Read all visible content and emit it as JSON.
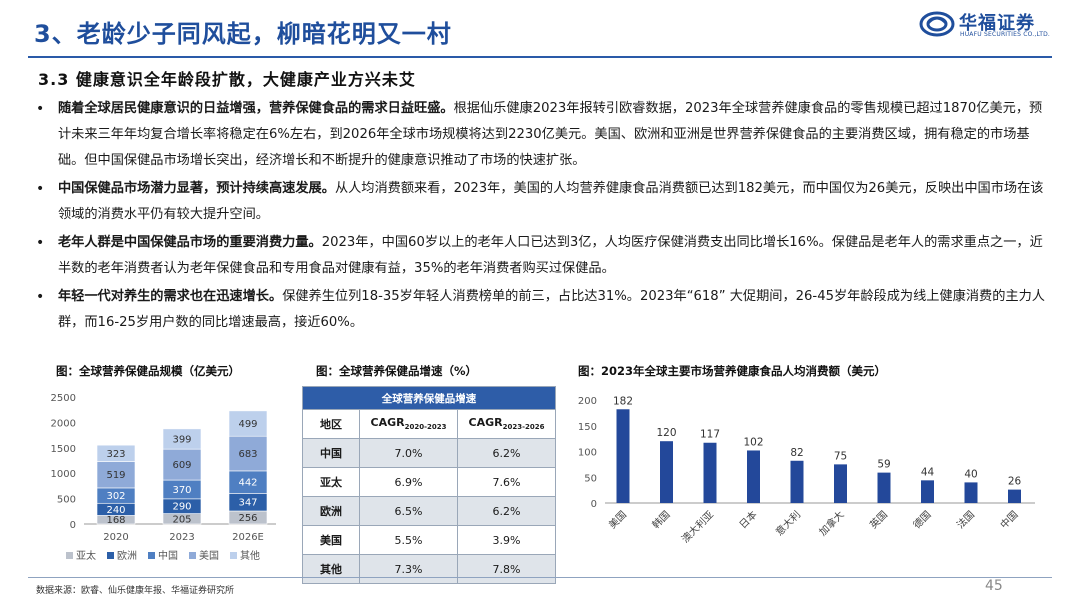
{
  "header": {
    "title": "3、老龄少子同风起，柳暗花明又一村",
    "logo_cn": "华福证券",
    "logo_en": "HUAFU SECURITIES CO.,LTD."
  },
  "section": {
    "subtitle": "3.3 健康意识全年龄段扩散，大健康产业方兴未艾"
  },
  "bullets": [
    {
      "bold": "随着全球居民健康意识的日益增强，营养保健食品的需求日益旺盛。",
      "text": "根据仙乐健康2023年报转引欧睿数据，2023年全球营养健康食品的零售规模已超过1870亿美元，预计未来三年年均复合增长率将稳定在6%左右，到2026年全球市场规模将达到2230亿美元。美国、欧洲和亚洲是世界营养保健食品的主要消费区域，拥有稳定的市场基础。但中国保健品市场增长突出，经济增长和不断提升的健康意识推动了市场的快速扩张。"
    },
    {
      "bold": "中国保健品市场潜力显著，预计持续高速发展。",
      "text": "从人均消费额来看，2023年，美国的人均营养健康食品消费额已达到182美元，而中国仅为26美元，反映出中国市场在该领域的消费水平仍有较大提升空间。"
    },
    {
      "bold": "老年人群是中国保健品市场的重要消费力量。",
      "text": "2023年，中国60岁以上的老年人口已达到3亿，人均医疗保健消费支出同比增长16%。保健品是老年人的需求重点之一，近半数的老年消费者认为老年保健食品和专用食品对健康有益，35%的老年消费者购买过保健品。"
    },
    {
      "bold": "年轻一代对养生的需求也在迅速增长。",
      "text": "保健养生位列18-35岁年轻人消费榜单的前三，占比达31%。2023年“618” 大促期间，26-45岁年龄段成为线上健康消费的主力人群，而16-25岁用户数的同比增速最高，接近60%。"
    }
  ],
  "chart_titles": {
    "left": "图：全球营养保健品规模（亿美元）",
    "middle": "图：全球营养保健品增速（%）",
    "right": "图：2023年全球主要市场营养健康食品人均消费额（美元）"
  },
  "chart_data": [
    {
      "type": "bar",
      "stacked": true,
      "categories": [
        "2020",
        "2023",
        "2026E"
      ],
      "series": [
        {
          "name": "亚太",
          "color": "#bcc2cc",
          "values": [
            168,
            205,
            256
          ]
        },
        {
          "name": "欧洲",
          "color": "#2c5fa8",
          "values": [
            240,
            290,
            347
          ]
        },
        {
          "name": "中国",
          "color": "#4f7fc2",
          "values": [
            302,
            370,
            442
          ]
        },
        {
          "name": "美国",
          "color": "#8faad8",
          "values": [
            519,
            609,
            683
          ]
        },
        {
          "name": "其他",
          "color": "#bdd0ec",
          "values": [
            323,
            399,
            499
          ]
        }
      ],
      "ylim": [
        0,
        2500
      ],
      "yticks": [
        "0",
        "500",
        "1000",
        "1500",
        "2000",
        "2500"
      ],
      "legend_position": "bottom"
    },
    {
      "type": "table",
      "caption": "全球营养保健品增速",
      "headers": [
        "地区",
        "CAGR",
        "CAGR"
      ],
      "header_subs": [
        "",
        "2020-2023",
        "2023-2026"
      ],
      "rows": [
        [
          "中国",
          "7.0%",
          "6.2%"
        ],
        [
          "亚太",
          "6.9%",
          "7.6%"
        ],
        [
          "欧洲",
          "6.5%",
          "6.2%"
        ],
        [
          "美国",
          "5.5%",
          "3.9%"
        ],
        [
          "其他",
          "7.3%",
          "7.8%"
        ]
      ]
    },
    {
      "type": "bar",
      "categories": [
        "美国",
        "韩国",
        "澳大利亚",
        "日本",
        "意大利",
        "加拿大",
        "英国",
        "德国",
        "法国",
        "中国"
      ],
      "values": [
        182,
        120,
        117,
        102,
        82,
        75,
        59,
        44,
        40,
        26
      ],
      "color": "#23489a",
      "ylim": [
        0,
        200
      ],
      "yticks": [
        "0",
        "50",
        "100",
        "150",
        "200"
      ]
    }
  ],
  "footer": {
    "source": "数据来源：欧睿、仙乐健康年报、华福证券研究所",
    "page": "45"
  }
}
